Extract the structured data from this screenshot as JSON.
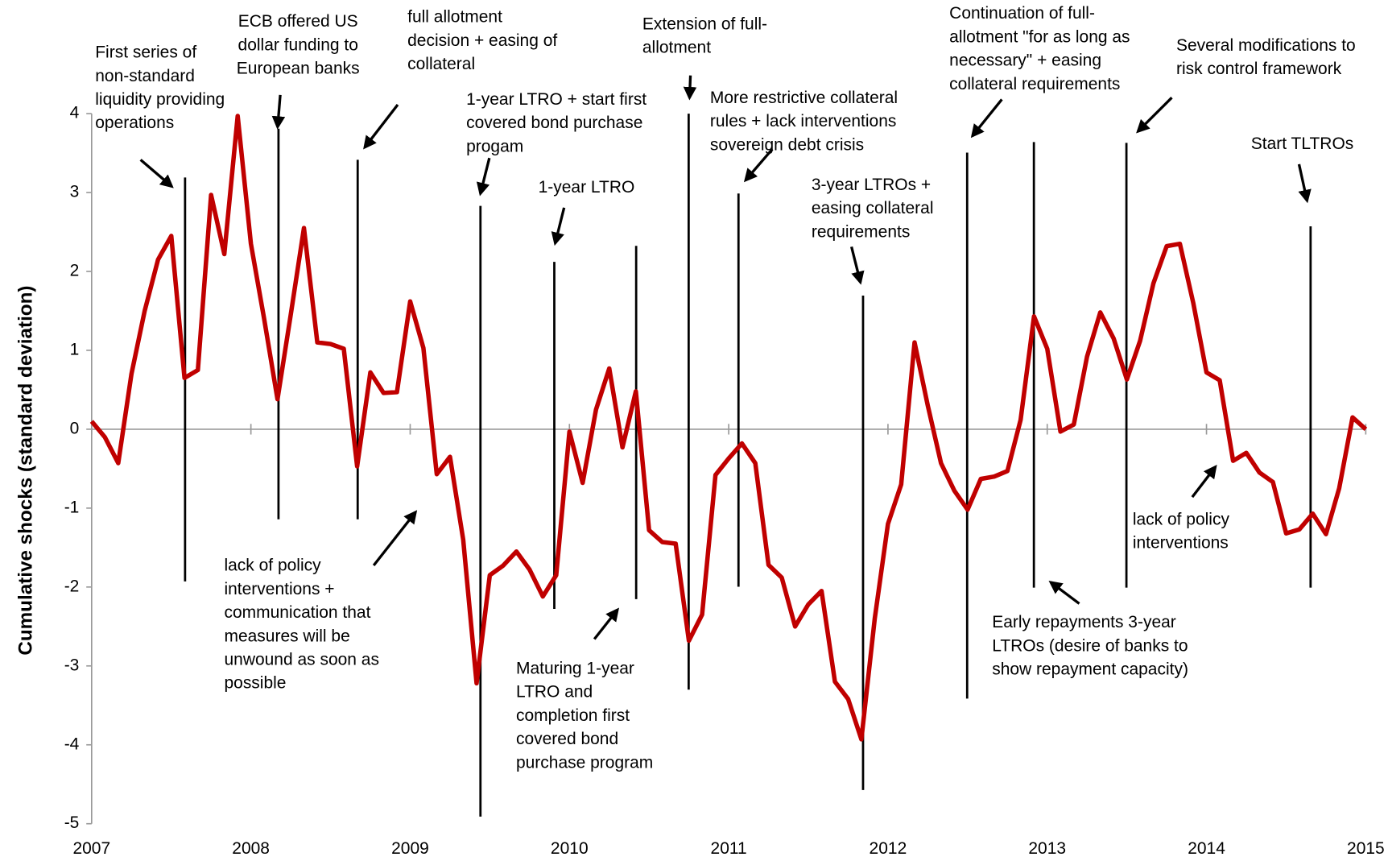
{
  "chart_data": {
    "type": "line",
    "y_label": "Cumulative shocks (standard deviation)",
    "xlim": [
      2007,
      2015
    ],
    "xticks": [
      2007,
      2008,
      2009,
      2010,
      2011,
      2012,
      2013,
      2014,
      2015
    ],
    "ylim": [
      -5,
      4
    ],
    "yticks": [
      -5,
      -4,
      -3,
      -2,
      -1,
      0,
      1,
      2,
      3,
      4
    ],
    "x": [
      2007,
      2007.083,
      2007.167,
      2007.25,
      2007.333,
      2007.417,
      2007.5,
      2007.583,
      2007.667,
      2007.75,
      2007.833,
      2007.917,
      2008,
      2008.083,
      2008.167,
      2008.25,
      2008.333,
      2008.417,
      2008.5,
      2008.583,
      2008.667,
      2008.75,
      2008.833,
      2008.917,
      2009,
      2009.083,
      2009.167,
      2009.25,
      2009.333,
      2009.417,
      2009.5,
      2009.583,
      2009.667,
      2009.75,
      2009.833,
      2009.917,
      2010,
      2010.083,
      2010.167,
      2010.25,
      2010.333,
      2010.417,
      2010.5,
      2010.583,
      2010.667,
      2010.75,
      2010.833,
      2010.917,
      2011,
      2011.083,
      2011.167,
      2011.25,
      2011.333,
      2011.417,
      2011.5,
      2011.583,
      2011.667,
      2011.75,
      2011.833,
      2011.917,
      2012,
      2012.083,
      2012.167,
      2012.25,
      2012.333,
      2012.417,
      2012.5,
      2012.583,
      2012.667,
      2012.75,
      2012.833,
      2012.917,
      2013,
      2013.083,
      2013.167,
      2013.25,
      2013.333,
      2013.417,
      2013.5,
      2013.583,
      2013.667,
      2013.75,
      2013.833,
      2013.917,
      2014,
      2014.083,
      2014.167,
      2014.25,
      2014.333,
      2014.417,
      2014.5,
      2014.583,
      2014.667,
      2014.75,
      2014.833,
      2014.917,
      2015
    ],
    "series": [
      {
        "color": "#c00000",
        "values": [
          0.1,
          -0.1,
          -0.43,
          0.7,
          1.5,
          2.15,
          2.45,
          0.65,
          0.75,
          2.97,
          2.22,
          3.97,
          2.35,
          1.4,
          0.38,
          1.45,
          2.55,
          1.1,
          1.08,
          1.02,
          -0.47,
          0.72,
          0.46,
          0.47,
          1.62,
          1.03,
          -0.57,
          -0.35,
          -1.4,
          -3.22,
          -1.85,
          -1.73,
          -1.55,
          -1.78,
          -2.12,
          -1.85,
          -0.03,
          -0.68,
          0.25,
          0.77,
          -0.23,
          0.48,
          -1.28,
          -1.43,
          -1.45,
          -2.68,
          -2.35,
          -0.58,
          -0.37,
          -0.18,
          -0.43,
          -1.72,
          -1.88,
          -2.5,
          -2.22,
          -2.05,
          -3.2,
          -3.42,
          -3.93,
          -2.4,
          -1.2,
          -0.7,
          1.1,
          0.3,
          -0.43,
          -0.78,
          -1.02,
          -0.63,
          -0.6,
          -0.53,
          0.12,
          1.43,
          1.02,
          -0.03,
          0.06,
          0.92,
          1.48,
          1.15,
          0.63,
          1.12,
          1.85,
          2.32,
          2.35,
          1.6,
          0.72,
          0.62,
          -0.4,
          -0.3,
          -0.55,
          -0.67,
          -1.32,
          -1.27,
          -1.07,
          -1.33,
          -0.75,
          0.15,
          0.0
        ]
      }
    ],
    "annotations": [
      {
        "lines": [
          "First series of",
          "non-standard",
          "liquidity providing",
          "operations"
        ]
      },
      {
        "lines": [
          "ECB offered US",
          "dollar funding to",
          "European banks"
        ]
      },
      {
        "lines": [
          "full allotment",
          "decision + easing of",
          "collateral"
        ]
      },
      {
        "lines": [
          "1-year LTRO + start first",
          "covered bond purchase",
          "progam"
        ]
      },
      {
        "lines": [
          "1-year LTRO"
        ]
      },
      {
        "lines": [
          "Extension of full-",
          "allotment"
        ]
      },
      {
        "lines": [
          "More restrictive collateral",
          "rules + lack interventions",
          "sovereign debt crisis"
        ]
      },
      {
        "lines": [
          "3-year LTROs +",
          "easing collateral",
          "requirements"
        ]
      },
      {
        "lines": [
          "Continuation of full-",
          "allotment \"for as long as",
          "necessary\" + easing",
          "collateral requirements"
        ]
      },
      {
        "lines": [
          "Several modifications to",
          "risk control framework"
        ]
      },
      {
        "lines": [
          "Start TLTROs"
        ]
      },
      {
        "lines": [
          "lack of policy",
          "interventions +",
          "communication that",
          "measures will be",
          "unwound as soon as",
          "possible"
        ]
      },
      {
        "lines": [
          "Maturing 1-year",
          "LTRO and",
          "completion first",
          "covered bond",
          "purchase program"
        ]
      },
      {
        "lines": [
          "Early repayments 3-year",
          "LTROs (desire of banks to",
          "show repayment capacity)"
        ]
      },
      {
        "lines": [
          "lack of policy",
          "interventions"
        ]
      }
    ]
  }
}
